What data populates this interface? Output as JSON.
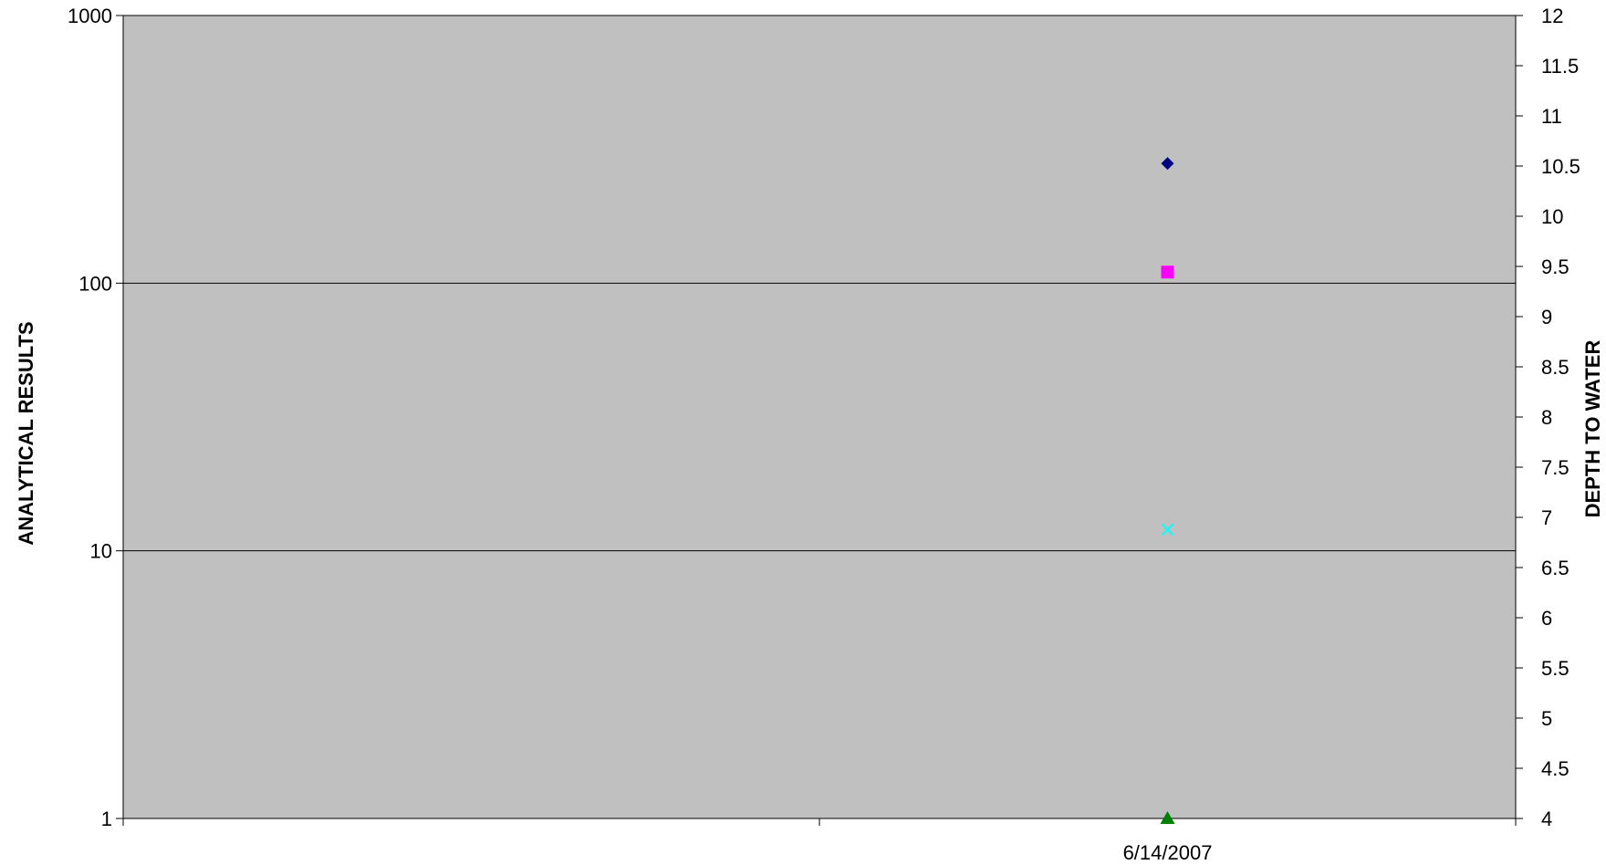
{
  "chart_data": {
    "type": "scatter",
    "title": "",
    "xlabel": "",
    "ylabel": "ANALYTICAL RESULTS",
    "y2label": "DEPTH TO WATER",
    "x_tick_labels": [
      "",
      "",
      "6/14/2007",
      ""
    ],
    "x_points": [
      "6/14/2007"
    ],
    "y_scale": "log",
    "ylim": [
      1,
      1000
    ],
    "y_ticks": [
      1,
      10,
      100,
      1000
    ],
    "y2lim": [
      4,
      12
    ],
    "y2_ticks": [
      4,
      4.5,
      5,
      5.5,
      6,
      6.5,
      7,
      7.5,
      8,
      8.5,
      9,
      9.5,
      10,
      10.5,
      11,
      11.5,
      12
    ],
    "grid": true,
    "plot_background": "#c0c0c0",
    "series": [
      {
        "x": "6/14/2007",
        "value": 280,
        "marker": "diamond",
        "color": "#000080"
      },
      {
        "x": "6/14/2007",
        "value": 110,
        "marker": "square",
        "color": "#ff00ff"
      },
      {
        "x": "6/14/2007",
        "value": 12,
        "marker": "x",
        "color": "#00ffff"
      },
      {
        "x": "6/14/2007",
        "value": 1,
        "marker": "triangle",
        "color": "#008000"
      }
    ]
  }
}
